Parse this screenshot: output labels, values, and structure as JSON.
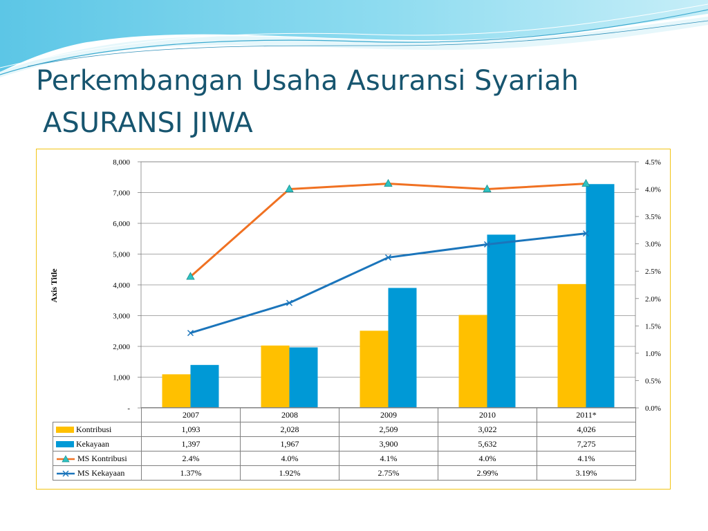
{
  "slide": {
    "title_line1": "Perkembangan Usaha Asuransi Syariah",
    "title_line2": "ASURANSI JIWA",
    "title_color": "#17556f"
  },
  "chart_data": {
    "type": "bar",
    "categories": [
      "2007",
      "2008",
      "2009",
      "2010",
      "2011*"
    ],
    "series": [
      {
        "name": "Kontribusi",
        "type": "bar",
        "axis": "left",
        "color": "#ffc000",
        "values": [
          1093,
          2028,
          2509,
          3022,
          4026
        ],
        "display": [
          "1,093",
          "2,028",
          "2,509",
          "3,022",
          "4,026"
        ]
      },
      {
        "name": "Kekayaan",
        "type": "bar",
        "axis": "left",
        "color": "#0099d6",
        "values": [
          1397,
          1967,
          3900,
          5632,
          7275
        ],
        "display": [
          "1,397",
          "1,967",
          "3,900",
          "5,632",
          "7,275"
        ]
      },
      {
        "name": "MS Kontribusi",
        "type": "line",
        "axis": "right",
        "color": "#f07122",
        "marker": "triangle",
        "marker_color": "#2ec2c2",
        "values": [
          2.4,
          4.0,
          4.1,
          4.0,
          4.1
        ],
        "display": [
          "2.4%",
          "4.0%",
          "4.1%",
          "4.0%",
          "4.1%"
        ]
      },
      {
        "name": "MS Kekayaan",
        "type": "line",
        "axis": "right",
        "color": "#1b75bb",
        "marker": "x",
        "values": [
          1.37,
          1.92,
          2.75,
          2.99,
          3.19
        ],
        "display": [
          "1.37%",
          "1.92%",
          "2.75%",
          "2.99%",
          "3.19%"
        ]
      }
    ],
    "ylabel": "Axis Title",
    "ylim": [
      0,
      8000
    ],
    "y_ticks": [
      "-",
      "1,000",
      "2,000",
      "3,000",
      "4,000",
      "5,000",
      "6,000",
      "7,000",
      "8,000"
    ],
    "y2lim": [
      0,
      4.5
    ],
    "y2_ticks": [
      "0.0%",
      "0.5%",
      "1.0%",
      "1.5%",
      "2.0%",
      "2.5%",
      "3.0%",
      "3.5%",
      "4.0%",
      "4.5%"
    ],
    "gridlines": true,
    "legend": "data-table",
    "frame_color": "#f2c414"
  }
}
